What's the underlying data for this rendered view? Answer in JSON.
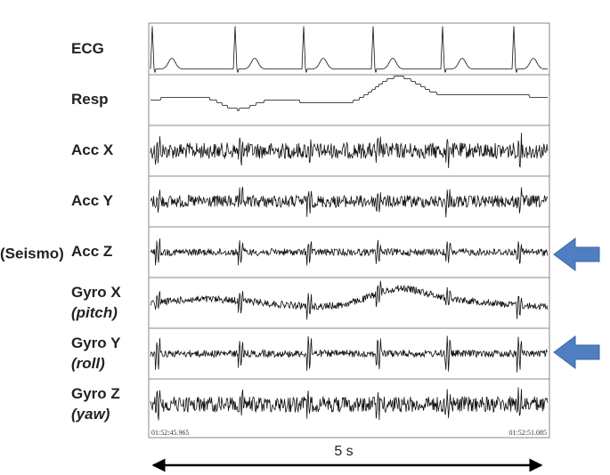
{
  "side_label": "(Seismo)",
  "rows": [
    {
      "label": "ECG"
    },
    {
      "label": "Resp"
    },
    {
      "label": "Acc X"
    },
    {
      "label": "Acc Y"
    },
    {
      "label": "Acc Z"
    },
    {
      "label": "Gyro X",
      "sublabel": "(pitch)"
    },
    {
      "label": "Gyro Y",
      "sublabel": "(roll)"
    },
    {
      "label": "Gyro Z",
      "sublabel": "(yaw)"
    }
  ],
  "timestamps": {
    "start": "01:52:45.965",
    "end": "01:52:51.085"
  },
  "duration": "5 s"
}
